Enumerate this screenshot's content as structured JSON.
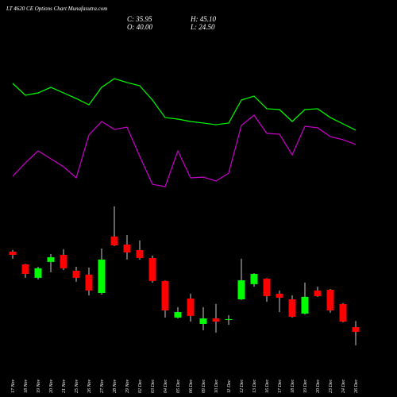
{
  "chart_data": {
    "type": "candlestick",
    "title": "LT 4620 CE Options Chart Munafasutra.com",
    "stats": {
      "close": "C: 35.95",
      "high": "H: 45.10",
      "open": "O: 40.00",
      "low": "L: 24.50"
    },
    "categories": [
      "17 Nov",
      "18 Nov",
      "19 Nov",
      "20 Nov",
      "21 Nov",
      "25 Nov",
      "26 Nov",
      "27 Nov",
      "28 Nov",
      "29 Nov",
      "02 Dec",
      "03 Dec",
      "04 Dec",
      "05 Dec",
      "06 Dec",
      "09 Dec",
      "10 Dec",
      "11 Dec",
      "12 Dec",
      "13 Dec",
      "16 Dec",
      "17 Dec",
      "18 Dec",
      "19 Dec",
      "20 Dec",
      "23 Dec",
      "24 Dec",
      "26 Dec"
    ],
    "open": [
      104.1,
      93.3,
      81.9,
      95.4,
      101.4,
      87.9,
      84.6,
      69.0,
      117.0,
      110.2,
      105.5,
      98.7,
      79.2,
      48.1,
      64.3,
      42.7,
      47.4,
      46.1,
      63.6,
      76.5,
      81.2,
      68.4,
      63.6,
      51.5,
      71.1,
      71.7,
      59.6,
      40.0
    ],
    "high": [
      105.5,
      93.8,
      91.3,
      102.1,
      106.2,
      91.3,
      90.6,
      106.8,
      142.6,
      118.3,
      113.6,
      100.8,
      79.6,
      56.9,
      68.4,
      56.9,
      59.6,
      50.1,
      98.1,
      85.9,
      81.6,
      71.1,
      67.0,
      77.8,
      74.4,
      72.4,
      60.3,
      45.1
    ],
    "low": [
      98.1,
      81.9,
      80.5,
      86.6,
      88.6,
      78.5,
      67.0,
      67.7,
      108.9,
      97.4,
      97.4,
      77.8,
      48.1,
      47.4,
      44.7,
      37.3,
      35.3,
      42.0,
      63.0,
      74.4,
      61.6,
      52.8,
      48.1,
      50.8,
      65.7,
      52.2,
      44.0,
      24.5
    ],
    "close": [
      101.4,
      85.2,
      90.0,
      99.4,
      90.0,
      81.9,
      71.1,
      97.4,
      109.5,
      103.5,
      98.7,
      79.2,
      54.2,
      52.8,
      49.5,
      47.4,
      44.7,
      46.8,
      79.8,
      85.2,
      66.3,
      65.0,
      48.8,
      65.7,
      66.3,
      54.2,
      44.7,
      35.95
    ],
    "up_color": "#00ff00",
    "down_color": "#ff0000",
    "ylim": [
      20,
      150
    ],
    "y2lim": [
      0,
      100
    ],
    "series": [
      {
        "color": "#00ff00",
        "axis": "y2",
        "values": [
          90,
          80,
          82,
          86.7,
          82,
          77.3,
          72,
          86.7,
          94,
          90.7,
          88,
          76,
          61.3,
          60,
          58,
          56.7,
          55.3,
          56.7,
          76,
          79.3,
          68.7,
          68,
          58,
          68,
          68.7,
          61.3,
          56,
          50.7
        ]
      },
      {
        "color": "#cc00cc",
        "axis": "y2",
        "values": [
          12,
          23.3,
          33.3,
          26.7,
          20,
          10.7,
          46.7,
          58,
          51.3,
          53.3,
          28.7,
          5.3,
          3.3,
          33.3,
          10.7,
          11.3,
          8,
          14.7,
          54.7,
          63.3,
          48,
          47.3,
          30,
          54,
          52.7,
          45.3,
          42.7,
          38.7
        ]
      }
    ]
  }
}
